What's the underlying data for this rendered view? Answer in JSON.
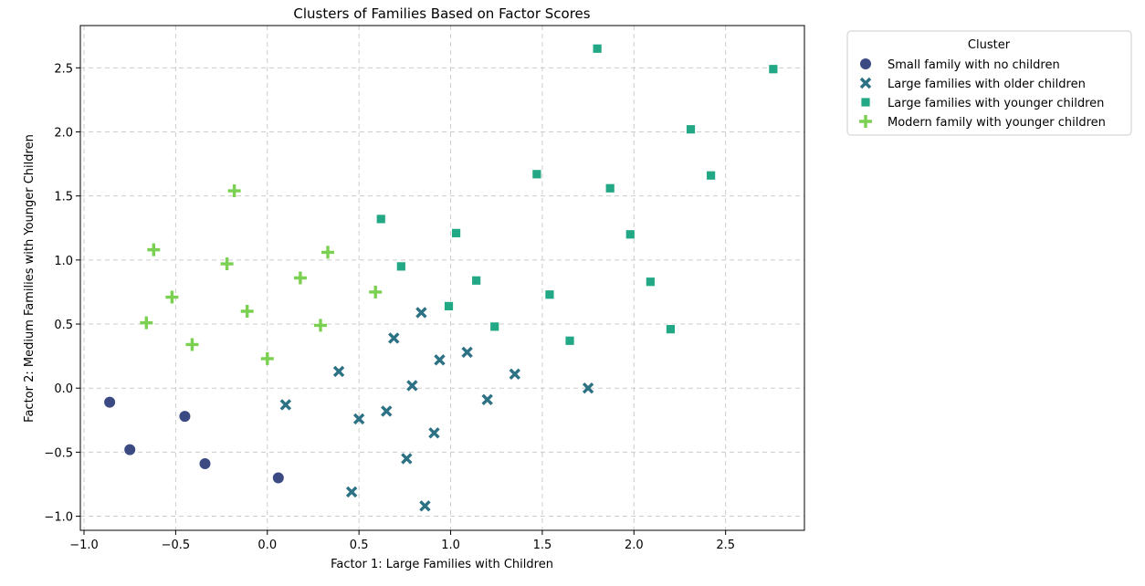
{
  "chart_data": {
    "type": "scatter",
    "title": "Clusters of Families Based on Factor Scores",
    "xlabel": "Factor 1: Large Families with Children",
    "ylabel": "Factor 2: Medium Families with Younger Children",
    "xlim": [
      -1.02,
      2.93
    ],
    "ylim": [
      -1.11,
      2.83
    ],
    "xticks": [
      -1.0,
      -0.5,
      0.0,
      0.5,
      1.0,
      1.5,
      2.0,
      2.5
    ],
    "xtick_labels": [
      "−1.0",
      "−0.5",
      "0.0",
      "0.5",
      "1.0",
      "1.5",
      "2.0",
      "2.5"
    ],
    "yticks": [
      -1.0,
      -0.5,
      0.0,
      0.5,
      1.0,
      1.5,
      2.0,
      2.5
    ],
    "ytick_labels": [
      "−1.0",
      "−0.5",
      "0.0",
      "0.5",
      "1.0",
      "1.5",
      "2.0",
      "2.5"
    ],
    "grid": true,
    "legend": {
      "title": "Cluster",
      "placement": "outside-top-right"
    },
    "series": [
      {
        "name": "Small family with no children",
        "marker": "circle",
        "color": "#3b4a83",
        "points": [
          [
            -0.86,
            -0.11
          ],
          [
            -0.75,
            -0.48
          ],
          [
            -0.45,
            -0.22
          ],
          [
            -0.34,
            -0.59
          ],
          [
            0.06,
            -0.7
          ]
        ]
      },
      {
        "name": "Large families with older children",
        "marker": "x",
        "color": "#2d7185",
        "points": [
          [
            0.1,
            -0.13
          ],
          [
            0.39,
            0.13
          ],
          [
            0.46,
            -0.81
          ],
          [
            0.5,
            -0.24
          ],
          [
            0.65,
            -0.18
          ],
          [
            0.69,
            0.39
          ],
          [
            0.76,
            -0.55
          ],
          [
            0.79,
            0.02
          ],
          [
            0.84,
            0.59
          ],
          [
            0.86,
            -0.92
          ],
          [
            0.91,
            -0.35
          ],
          [
            0.94,
            0.22
          ],
          [
            1.09,
            0.28
          ],
          [
            1.2,
            -0.09
          ],
          [
            1.35,
            0.11
          ],
          [
            1.75,
            0.0
          ]
        ]
      },
      {
        "name": "Large families with younger children",
        "marker": "square",
        "color": "#22a884",
        "points": [
          [
            0.62,
            1.32
          ],
          [
            0.73,
            0.95
          ],
          [
            0.99,
            0.64
          ],
          [
            1.03,
            1.21
          ],
          [
            1.14,
            0.84
          ],
          [
            1.24,
            0.48
          ],
          [
            1.47,
            1.67
          ],
          [
            1.54,
            0.73
          ],
          [
            1.65,
            0.37
          ],
          [
            1.8,
            2.65
          ],
          [
            1.87,
            1.56
          ],
          [
            1.98,
            1.2
          ],
          [
            2.09,
            0.83
          ],
          [
            2.2,
            0.46
          ],
          [
            2.31,
            2.02
          ],
          [
            2.42,
            1.66
          ],
          [
            2.76,
            2.49
          ]
        ]
      },
      {
        "name": "Modern family with younger children",
        "marker": "plus",
        "color": "#7ad151",
        "points": [
          [
            -0.66,
            0.51
          ],
          [
            -0.62,
            1.08
          ],
          [
            -0.52,
            0.71
          ],
          [
            -0.41,
            0.34
          ],
          [
            -0.22,
            0.97
          ],
          [
            -0.18,
            1.54
          ],
          [
            -0.11,
            0.6
          ],
          [
            0.0,
            0.23
          ],
          [
            0.18,
            0.86
          ],
          [
            0.29,
            0.49
          ],
          [
            0.33,
            1.06
          ],
          [
            0.59,
            0.75
          ]
        ]
      }
    ]
  }
}
